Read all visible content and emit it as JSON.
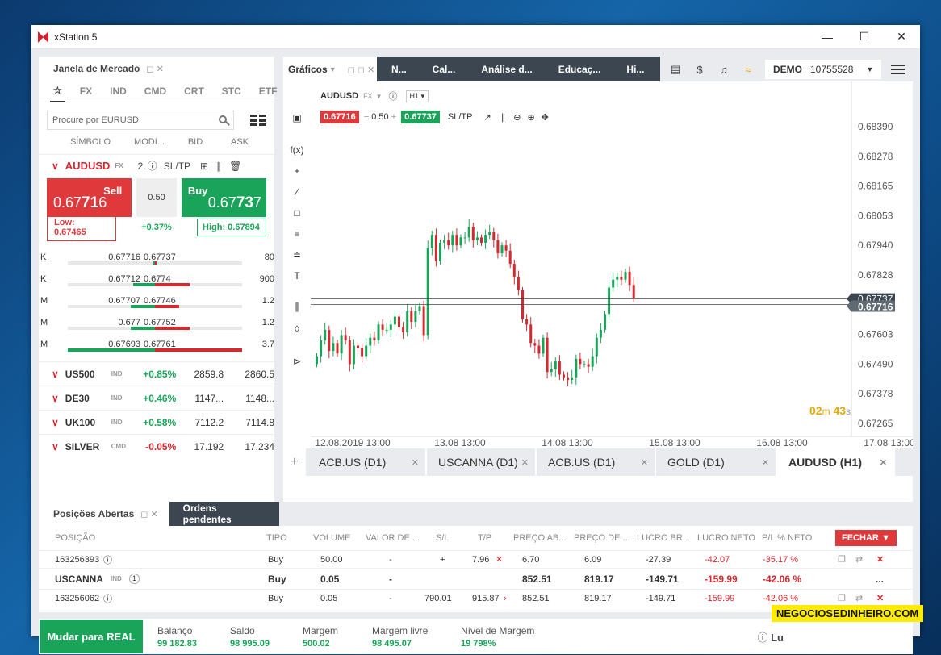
{
  "window": {
    "title": "xStation 5"
  },
  "market": {
    "panel_title": "Janela de Mercado",
    "categories": [
      "FX",
      "IND",
      "CMD",
      "CRT",
      "STC",
      "ETF"
    ],
    "search_placeholder": "Procure por EURUSD",
    "columns": [
      "SÍMBOLO",
      "MODI...",
      "BID",
      "ASK"
    ],
    "main": {
      "symbol": "AUDUSD",
      "type": "FX",
      "modifier": "2.",
      "sltp": "SL/TP",
      "sell_label": "Sell",
      "sell_price_pre": "0.67",
      "sell_price_big": "71",
      "sell_price_post": "6",
      "buy_label": "Buy",
      "buy_price_pre": "0.67",
      "buy_price_big": "73",
      "buy_price_post": "7",
      "spread": "0.50",
      "low": "Low: 0.67465",
      "high": "High: 0.67894",
      "change": "+0.37%"
    },
    "depth": [
      {
        "lbl": "K",
        "bid": "0.67716",
        "ask": "0.67737",
        "vol": "80",
        "bidbar": 0.02,
        "askbar": 0.02
      },
      {
        "lbl": "K",
        "bid": "0.67712",
        "ask": "0.6774",
        "vol": "900",
        "bidbar": 0.25,
        "askbar": 0.4
      },
      {
        "lbl": "M",
        "bid": "0.67707",
        "ask": "0.67746",
        "vol": "1.2",
        "bidbar": 0.28,
        "askbar": 0.28
      },
      {
        "lbl": "M",
        "bid": "0.677",
        "ask": "0.67752",
        "vol": "1.2",
        "bidbar": 0.28,
        "askbar": 0.4
      },
      {
        "lbl": "M",
        "bid": "0.67693",
        "ask": "0.67761",
        "vol": "3.7",
        "bidbar": 1.0,
        "askbar": 1.0
      }
    ],
    "instruments": [
      {
        "name": "US500",
        "type": "IND",
        "pct": "+0.85%",
        "bid": "2859.8",
        "ask": "2860.5"
      },
      {
        "name": "DE30",
        "type": "IND",
        "pct": "+0.46%",
        "bid": "1147...",
        "ask": "1148..."
      },
      {
        "name": "UK100",
        "type": "IND",
        "pct": "+0.58%",
        "bid": "7112.2",
        "ask": "7114.8"
      },
      {
        "name": "SILVER",
        "type": "CMD",
        "pct": "-0.05%",
        "bid": "17.192",
        "ask": "17.234"
      }
    ]
  },
  "charts": {
    "tab_title": "Gráficos",
    "nav": [
      "N...",
      "Cal...",
      "Análise d...",
      "Educaç...",
      "Hi..."
    ],
    "account_mode": "DEMO",
    "account_number": "10755528",
    "symbol": "AUDUSD",
    "symbol_type": "FX",
    "timeframe": "H1",
    "sell_price": "0.67716",
    "spread": "0.50",
    "buy_price": "0.67737",
    "sltp": "SL/TP",
    "countdown_min": "02",
    "countdown_m": "m",
    "countdown_sec": "43",
    "countdown_s": "s",
    "tabs": [
      {
        "label": "ACB.US (D1)",
        "active": false
      },
      {
        "label": "USCANNA (D1)",
        "active": false
      },
      {
        "label": "ACB.US (D1)",
        "active": false
      },
      {
        "label": "GOLD (D1)",
        "active": false
      },
      {
        "label": "AUDUSD (H1)",
        "active": true
      }
    ]
  },
  "chart_data": {
    "type": "candlestick",
    "y_ticks": [
      "0.68390",
      "0.68278",
      "0.68165",
      "0.68053",
      "0.67940",
      "0.67828",
      "0.67716",
      "0.67603",
      "0.67490",
      "0.67378",
      "0.67265"
    ],
    "ylim": [
      0.67265,
      0.6839
    ],
    "x_ticks": [
      "12.08.2019 13:00",
      "13.08 13:00",
      "14.08 13:00",
      "15.08 13:00",
      "16.08 13:00",
      "17.08 13:00"
    ],
    "price_labels": {
      "ask": "0.67737",
      "bid": "0.67716"
    },
    "closes": [
      0.6752,
      0.6758,
      0.6762,
      0.6754,
      0.6757,
      0.6753,
      0.676,
      0.6758,
      0.6749,
      0.6756,
      0.6755,
      0.6752,
      0.6756,
      0.6759,
      0.6758,
      0.6764,
      0.6762,
      0.6762,
      0.6764,
      0.6767,
      0.6763,
      0.6761,
      0.6769,
      0.6765,
      0.6769,
      0.6771,
      0.676,
      0.6793,
      0.6798,
      0.6788,
      0.6795,
      0.6796,
      0.6794,
      0.6798,
      0.6794,
      0.6797,
      0.6797,
      0.6801,
      0.6796,
      0.6797,
      0.6795,
      0.6798,
      0.6799,
      0.6796,
      0.6791,
      0.6794,
      0.6792,
      0.6787,
      0.6782,
      0.6777,
      0.6766,
      0.6764,
      0.6757,
      0.6756,
      0.6753,
      0.6759,
      0.6746,
      0.6747,
      0.675,
      0.6745,
      0.6744,
      0.6743,
      0.6744,
      0.6751,
      0.6749,
      0.6749,
      0.6748,
      0.6752,
      0.6759,
      0.6762,
      0.6768,
      0.6778,
      0.6781,
      0.6782,
      0.6781,
      0.6784,
      0.6779,
      0.6774
    ]
  },
  "positions": {
    "tabs": [
      "Posições Abertas",
      "Ordens pendentes"
    ],
    "columns": [
      "POSIÇÃO",
      "TIPO",
      "VOLUME",
      "VALOR DE ...",
      "S/L",
      "T/P",
      "PREÇO AB...",
      "PREÇO DE ...",
      "LUCRO BR...",
      "LUCRO NETO",
      "P/L % NETO"
    ],
    "close_label": "FECHAR",
    "rows": [
      {
        "id": "163256393",
        "type": "Buy",
        "volume": "50.00",
        "value": "-",
        "sl": "+",
        "tp": "7.96",
        "open": "6.70",
        "close": "6.09",
        "gross": "-27.39",
        "net": "-42.07",
        "pl": "-35.17 %"
      },
      {
        "id": "USCANNA",
        "tag": "IND",
        "count": "1",
        "type": "Buy",
        "volume": "0.05",
        "value": "-",
        "sl": "",
        "tp": "",
        "open": "852.51",
        "close": "819.17",
        "gross": "-149.71",
        "net": "-159.99",
        "pl": "-42.06 %",
        "more": "..."
      },
      {
        "id": "163256062",
        "type": "Buy",
        "volume": "0.05",
        "value": "-",
        "sl": "790.01",
        "tp": "915.87",
        "open": "852.51",
        "close": "819.17",
        "gross": "-149.71",
        "net": "-159.99",
        "pl": "-42.06 %"
      }
    ]
  },
  "footer": {
    "real_button": "Mudar para REAL",
    "stats": [
      {
        "label": "Balanço",
        "value": "99 182.83"
      },
      {
        "label": "Saldo",
        "value": "98 995.09"
      },
      {
        "label": "Margem",
        "value": "500.02"
      },
      {
        "label": "Margem livre",
        "value": "98 495.07"
      },
      {
        "label": "Nível de Margem",
        "value": "19 798%"
      }
    ],
    "right_text": "Lu"
  },
  "watermark": "NEGOCIOSEDINHEIRO.COM",
  "colors": {
    "up": "#1aa459",
    "down": "#d6282f",
    "dark_tab": "#3c4650"
  }
}
